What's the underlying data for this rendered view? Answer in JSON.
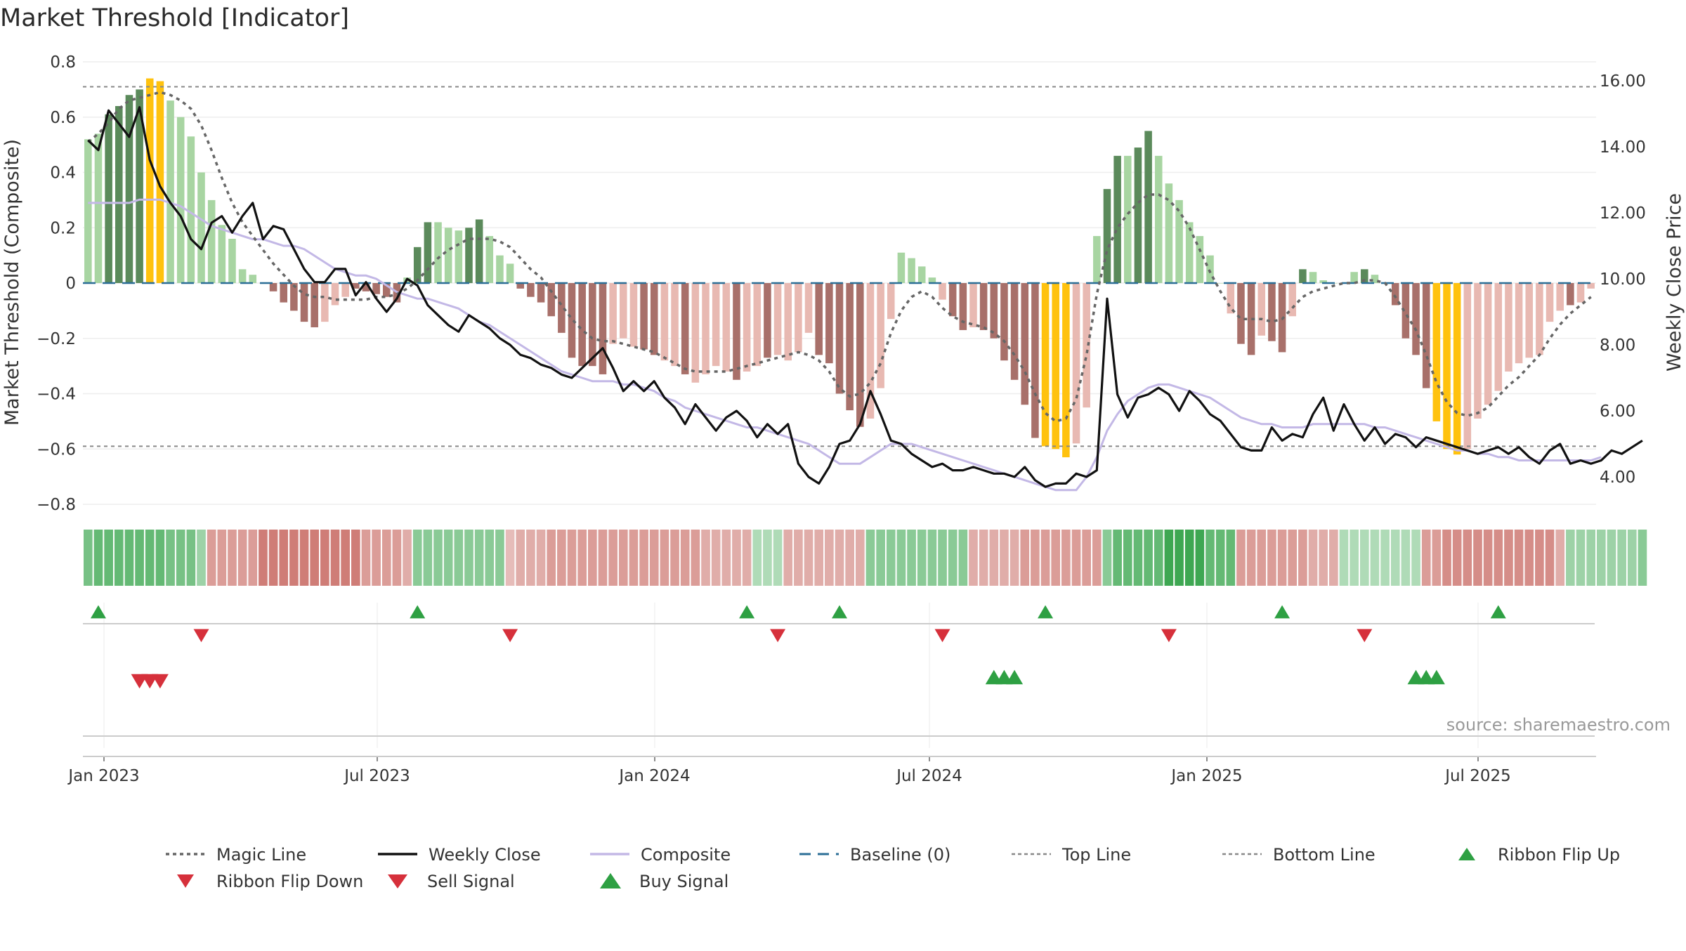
{
  "title": "Market Threshold [Indicator]",
  "source": "source: sharemaestro.com",
  "colors": {
    "bar_strong_pos": "#5b8a5b",
    "bar_weak_pos": "#a8d5a2",
    "bar_strong_neg": "#a8706a",
    "bar_weak_neg": "#e8b9b2",
    "bar_extreme": "#ffc20e",
    "weekly_close": "#111111",
    "composite": "#c3b8e6",
    "magic_line": "#666666",
    "baseline": "#2b6e96",
    "threshold": "#888888",
    "buy": "#2ea043",
    "sell": "#d6303b",
    "flip_down": "#d6303b",
    "flip_up": "#2ea043",
    "grid": "#eeeeee"
  },
  "chart_data": {
    "type": "bar",
    "title": "Market Threshold [Indicator]",
    "ylabel_left": "Market Threshold (Composite)",
    "ylabel_right": "Weekly Close Price",
    "ylim_left": [
      -0.8,
      0.8
    ],
    "yticks_left": [
      "0.8",
      "0.6",
      "0.4",
      "0.2",
      "0",
      "−0.2",
      "−0.4",
      "−0.6",
      "−0.8"
    ],
    "ylim_right": [
      4.0,
      16.0
    ],
    "yticks_right": [
      "16.00",
      "14.00",
      "12.00",
      "10.00",
      "8.00",
      "6.00",
      "4.00"
    ],
    "xticks": [
      "Jan 2023",
      "Jul 2023",
      "Jan 2024",
      "Jul 2024",
      "Jan 2025",
      "Jul 2025"
    ],
    "top_line": 0.71,
    "bottom_line": -0.59,
    "baseline": 0,
    "composite_bars": [
      0.52,
      0.54,
      0.61,
      0.64,
      0.68,
      0.7,
      0.74,
      0.73,
      0.66,
      0.6,
      0.53,
      0.4,
      0.3,
      0.21,
      0.16,
      0.05,
      0.03,
      0.0,
      -0.03,
      -0.07,
      -0.1,
      -0.14,
      -0.16,
      -0.14,
      -0.08,
      -0.05,
      -0.02,
      -0.03,
      -0.04,
      -0.05,
      -0.07,
      0.02,
      0.13,
      0.22,
      0.22,
      0.2,
      0.19,
      0.2,
      0.23,
      0.17,
      0.1,
      0.07,
      -0.02,
      -0.05,
      -0.07,
      -0.12,
      -0.18,
      -0.27,
      -0.3,
      -0.3,
      -0.33,
      -0.22,
      -0.2,
      -0.23,
      -0.24,
      -0.26,
      -0.28,
      -0.3,
      -0.33,
      -0.36,
      -0.33,
      -0.3,
      -0.32,
      -0.35,
      -0.32,
      -0.3,
      -0.27,
      -0.26,
      -0.28,
      -0.25,
      -0.18,
      -0.26,
      -0.29,
      -0.4,
      -0.46,
      -0.52,
      -0.49,
      -0.38,
      -0.13,
      0.11,
      0.09,
      0.06,
      0.02,
      -0.06,
      -0.12,
      -0.17,
      -0.16,
      -0.17,
      -0.2,
      -0.28,
      -0.35,
      -0.44,
      -0.56,
      -0.59,
      -0.6,
      -0.63,
      -0.58,
      -0.45,
      0.17,
      0.34,
      0.46,
      0.46,
      0.49,
      0.55,
      0.46,
      0.36,
      0.3,
      0.22,
      0.17,
      0.1,
      0.0,
      -0.11,
      -0.22,
      -0.26,
      -0.19,
      -0.21,
      -0.25,
      -0.12,
      0.05,
      0.04,
      0.01,
      0.0,
      0.0,
      0.04,
      0.05,
      0.03,
      0.0,
      -0.08,
      -0.2,
      -0.26,
      -0.38,
      -0.5,
      -0.6,
      -0.62,
      -0.6,
      -0.49,
      -0.44,
      -0.39,
      -0.32,
      -0.29,
      -0.27,
      -0.26,
      -0.14,
      -0.1,
      -0.08,
      -0.07,
      -0.02
    ],
    "bar_colors": [
      "wp",
      "wp",
      "sp",
      "sp",
      "sp",
      "sp",
      "ex",
      "ex",
      "wp",
      "wp",
      "wp",
      "wp",
      "wp",
      "wp",
      "wp",
      "wp",
      "wp",
      "wn",
      "sn",
      "sn",
      "sn",
      "sn",
      "sn",
      "wn",
      "wn",
      "wn",
      "sn",
      "sn",
      "sn",
      "sn",
      "sn",
      "wp",
      "sp",
      "sp",
      "wp",
      "wp",
      "wp",
      "sp",
      "sp",
      "wp",
      "wp",
      "wp",
      "sn",
      "sn",
      "sn",
      "sn",
      "sn",
      "sn",
      "sn",
      "sn",
      "sn",
      "wn",
      "wn",
      "wn",
      "sn",
      "sn",
      "wn",
      "wn",
      "sn",
      "wn",
      "wn",
      "wn",
      "wn",
      "sn",
      "wn",
      "wn",
      "sn",
      "wn",
      "wn",
      "wn",
      "wn",
      "sn",
      "sn",
      "sn",
      "sn",
      "sn",
      "wn",
      "wn",
      "wn",
      "wp",
      "wp",
      "wp",
      "wp",
      "wn",
      "sn",
      "sn",
      "wn",
      "sn",
      "sn",
      "sn",
      "sn",
      "sn",
      "sn",
      "ex",
      "ex",
      "ex",
      "wn",
      "wn",
      "wp",
      "sp",
      "sp",
      "wp",
      "sp",
      "sp",
      "wp",
      "wp",
      "wp",
      "wp",
      "wp",
      "wp",
      "wp",
      "wn",
      "sn",
      "sn",
      "wn",
      "sn",
      "sn",
      "wn",
      "sp",
      "wp",
      "wp",
      "wp",
      "wp",
      "wp",
      "sp",
      "wp",
      "wn",
      "sn",
      "sn",
      "sn",
      "sn",
      "ex",
      "ex",
      "ex",
      "wn",
      "wn",
      "wn",
      "wn",
      "wn",
      "wn",
      "wn",
      "wn",
      "wn",
      "wn",
      "sn",
      "wn"
    ],
    "series": [
      {
        "name": "Weekly Close",
        "axis": "right",
        "values": [
          14.2,
          13.9,
          15.1,
          14.7,
          14.3,
          15.2,
          13.6,
          12.8,
          12.3,
          11.9,
          11.2,
          10.9,
          11.7,
          11.9,
          11.4,
          11.9,
          12.3,
          11.2,
          11.6,
          11.5,
          10.9,
          10.3,
          9.9,
          9.9,
          10.3,
          10.3,
          9.5,
          9.9,
          9.4,
          9.0,
          9.4,
          10.0,
          9.8,
          9.2,
          8.9,
          8.6,
          8.4,
          8.9,
          8.7,
          8.5,
          8.2,
          8.0,
          7.7,
          7.6,
          7.4,
          7.3,
          7.1,
          7.0,
          7.3,
          7.6,
          7.9,
          7.3,
          6.6,
          6.9,
          6.6,
          6.9,
          6.4,
          6.1,
          5.6,
          6.2,
          5.8,
          5.4,
          5.8,
          6.0,
          5.7,
          5.2,
          5.6,
          5.3,
          5.6,
          4.4,
          4.0,
          3.8,
          4.3,
          5.0,
          5.1,
          5.6,
          6.6,
          5.9,
          5.1,
          5.0,
          4.7,
          4.5,
          4.3,
          4.4,
          4.2,
          4.2,
          4.3,
          4.2,
          4.1,
          4.1,
          4.0,
          4.3,
          3.9,
          3.7,
          3.8,
          3.8,
          4.1,
          4.0,
          4.2,
          9.4,
          6.5,
          5.8,
          6.4,
          6.5,
          6.7,
          6.5,
          6.0,
          6.6,
          6.3,
          5.9,
          5.7,
          5.3,
          4.9,
          4.8,
          4.8,
          5.5,
          5.1,
          5.3,
          5.2,
          5.9,
          6.4,
          5.4,
          6.2,
          5.6,
          5.1,
          5.5,
          5.0,
          5.3,
          5.2,
          4.9,
          5.2,
          5.1,
          5.0,
          4.9,
          4.8,
          4.7,
          4.8,
          4.9,
          4.7,
          4.9,
          4.6,
          4.4,
          4.8,
          5.0,
          4.4,
          4.5,
          4.4,
          4.5,
          4.8,
          4.7,
          4.9,
          5.1
        ]
      },
      {
        "name": "Composite",
        "axis": "right",
        "values": [
          12.3,
          12.3,
          12.3,
          12.3,
          12.3,
          12.4,
          12.4,
          12.4,
          12.3,
          12.2,
          12.0,
          11.8,
          11.6,
          11.5,
          11.4,
          11.3,
          11.2,
          11.2,
          11.1,
          11.0,
          11.0,
          10.9,
          10.7,
          10.5,
          10.3,
          10.2,
          10.1,
          10.1,
          10.0,
          9.8,
          9.6,
          9.5,
          9.4,
          9.4,
          9.3,
          9.2,
          9.1,
          8.9,
          8.7,
          8.6,
          8.4,
          8.2,
          8.0,
          7.8,
          7.6,
          7.4,
          7.2,
          7.1,
          7.0,
          6.9,
          6.9,
          6.9,
          6.8,
          6.8,
          6.7,
          6.6,
          6.4,
          6.3,
          6.1,
          6.0,
          5.9,
          5.8,
          5.7,
          5.6,
          5.5,
          5.5,
          5.4,
          5.3,
          5.2,
          5.1,
          5.0,
          4.8,
          4.6,
          4.4,
          4.4,
          4.4,
          4.6,
          4.8,
          5.0,
          5.0,
          5.0,
          4.9,
          4.8,
          4.7,
          4.6,
          4.5,
          4.4,
          4.3,
          4.2,
          4.1,
          4.0,
          3.9,
          3.8,
          3.7,
          3.6,
          3.6,
          3.6,
          4.0,
          4.6,
          5.4,
          5.9,
          6.3,
          6.5,
          6.7,
          6.8,
          6.8,
          6.7,
          6.6,
          6.5,
          6.4,
          6.2,
          6.0,
          5.8,
          5.7,
          5.6,
          5.6,
          5.5,
          5.5,
          5.5,
          5.6,
          5.6,
          5.6,
          5.6,
          5.6,
          5.6,
          5.5,
          5.5,
          5.4,
          5.3,
          5.2,
          5.1,
          5.0,
          4.9,
          4.8,
          4.8,
          4.7,
          4.7,
          4.6,
          4.6,
          4.5,
          4.5,
          4.5,
          4.5,
          4.5,
          4.5,
          4.5,
          4.5,
          4.6
        ]
      },
      {
        "name": "Magic Line",
        "axis": "left",
        "values": [
          0.51,
          0.54,
          0.58,
          0.63,
          0.66,
          0.67,
          0.68,
          0.69,
          0.68,
          0.66,
          0.63,
          0.57,
          0.48,
          0.38,
          0.29,
          0.22,
          0.17,
          0.12,
          0.07,
          0.03,
          -0.01,
          -0.04,
          -0.05,
          -0.05,
          -0.06,
          -0.06,
          -0.06,
          -0.06,
          -0.05,
          -0.05,
          -0.04,
          -0.02,
          0.01,
          0.05,
          0.09,
          0.12,
          0.14,
          0.16,
          0.16,
          0.16,
          0.15,
          0.13,
          0.09,
          0.05,
          0.02,
          -0.03,
          -0.08,
          -0.13,
          -0.17,
          -0.2,
          -0.21,
          -0.21,
          -0.22,
          -0.23,
          -0.24,
          -0.25,
          -0.27,
          -0.29,
          -0.31,
          -0.32,
          -0.32,
          -0.32,
          -0.32,
          -0.31,
          -0.3,
          -0.29,
          -0.28,
          -0.27,
          -0.26,
          -0.25,
          -0.26,
          -0.28,
          -0.32,
          -0.38,
          -0.41,
          -0.4,
          -0.36,
          -0.29,
          -0.18,
          -0.1,
          -0.05,
          -0.03,
          -0.05,
          -0.09,
          -0.12,
          -0.14,
          -0.15,
          -0.16,
          -0.18,
          -0.21,
          -0.26,
          -0.32,
          -0.4,
          -0.47,
          -0.5,
          -0.49,
          -0.42,
          -0.26,
          -0.04,
          0.12,
          0.2,
          0.25,
          0.29,
          0.32,
          0.32,
          0.3,
          0.26,
          0.2,
          0.12,
          0.04,
          -0.03,
          -0.09,
          -0.13,
          -0.13,
          -0.13,
          -0.14,
          -0.13,
          -0.09,
          -0.05,
          -0.03,
          -0.02,
          -0.01,
          0.0,
          0.0,
          0.01,
          0.01,
          0.0,
          -0.05,
          -0.11,
          -0.17,
          -0.26,
          -0.36,
          -0.43,
          -0.47,
          -0.48,
          -0.47,
          -0.45,
          -0.41,
          -0.37,
          -0.34,
          -0.3,
          -0.26,
          -0.2,
          -0.15,
          -0.11,
          -0.08,
          -0.05
        ]
      }
    ],
    "ribbon": [
      0.5,
      0.6,
      0.6,
      0.6,
      0.6,
      0.6,
      0.6,
      0.6,
      0.5,
      0.5,
      0.5,
      0.3,
      -0.4,
      -0.4,
      -0.4,
      -0.4,
      -0.4,
      -0.6,
      -0.6,
      -0.6,
      -0.6,
      -0.6,
      -0.6,
      -0.6,
      -0.6,
      -0.6,
      -0.6,
      -0.4,
      -0.4,
      -0.4,
      -0.4,
      -0.3,
      0.4,
      0.4,
      0.4,
      0.4,
      0.4,
      0.4,
      0.4,
      0.4,
      0.4,
      -0.2,
      -0.3,
      -0.3,
      -0.3,
      -0.4,
      -0.4,
      -0.4,
      -0.4,
      -0.4,
      -0.4,
      -0.4,
      -0.4,
      -0.4,
      -0.4,
      -0.4,
      -0.4,
      -0.4,
      -0.4,
      -0.4,
      -0.3,
      -0.3,
      -0.3,
      -0.3,
      -0.3,
      0.2,
      0.2,
      0.2,
      -0.3,
      -0.3,
      -0.3,
      -0.3,
      -0.3,
      -0.3,
      -0.3,
      -0.3,
      0.4,
      0.4,
      0.4,
      0.4,
      0.4,
      0.4,
      0.4,
      0.4,
      0.4,
      0.4,
      -0.3,
      -0.3,
      -0.3,
      -0.3,
      -0.3,
      -0.4,
      -0.4,
      -0.4,
      -0.4,
      -0.4,
      -0.4,
      -0.4,
      -0.4,
      0.4,
      0.6,
      0.6,
      0.6,
      0.6,
      0.6,
      0.8,
      0.8,
      0.8,
      0.8,
      0.6,
      0.6,
      0.6,
      -0.4,
      -0.4,
      -0.4,
      -0.4,
      -0.4,
      -0.4,
      -0.4,
      -0.3,
      -0.3,
      -0.3,
      0.2,
      0.2,
      0.2,
      0.2,
      0.2,
      0.2,
      0.2,
      0.2,
      -0.4,
      -0.4,
      -0.5,
      -0.5,
      -0.5,
      -0.5,
      -0.5,
      -0.5,
      -0.5,
      -0.5,
      -0.5,
      -0.5,
      -0.5,
      -0.3,
      0.3,
      0.3,
      0.3,
      0.3,
      0.3,
      0.3,
      0.3,
      0.4
    ],
    "ribbon_flip_up_weeks": [
      1,
      32,
      64,
      73,
      93,
      116,
      137
    ],
    "ribbon_flip_down_weeks": [
      11,
      41,
      67,
      83,
      105,
      124
    ],
    "sell_signal_weeks": [
      5,
      6,
      7
    ],
    "buy_signal_weeks": [
      88,
      89,
      90,
      129,
      130,
      131
    ],
    "legend": [
      "Magic Line",
      "Weekly Close",
      "Composite",
      "Baseline (0)",
      "Top Line",
      "Bottom Line",
      "Ribbon Flip Up",
      "Ribbon Flip Down",
      "Sell Signal",
      "Buy Signal"
    ]
  }
}
